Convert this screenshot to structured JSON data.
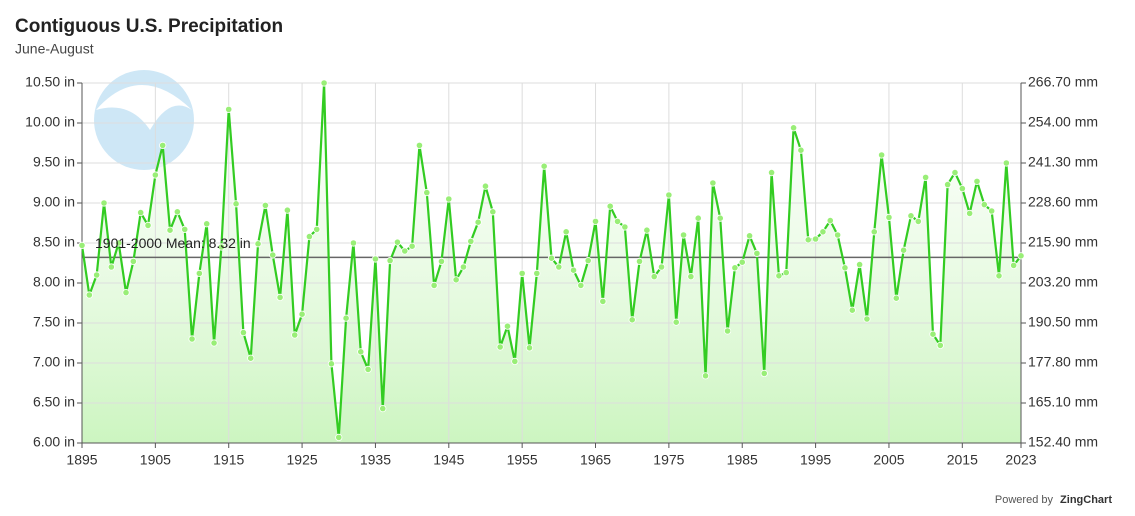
{
  "chart_data": {
    "type": "line",
    "title": "Contiguous U.S. Precipitation",
    "subtitle": "June-August",
    "logo_text": "NOAA",
    "credit": {
      "prefix": "Powered by",
      "brand": "ZingChart"
    },
    "mean_line": {
      "label": "1901-2000 Mean: 8.32 in",
      "value": 8.32,
      "color": "#666666"
    },
    "grid": true,
    "xlim": [
      1895,
      2023
    ],
    "xticks": [
      1895,
      1905,
      1915,
      1925,
      1935,
      1945,
      1955,
      1965,
      1975,
      1985,
      1995,
      2005,
      2015,
      2023
    ],
    "ylim": [
      6.0,
      10.5
    ],
    "yticks": [
      {
        "value": 6.0,
        "label": "6.00 in"
      },
      {
        "value": 6.5,
        "label": "6.50 in"
      },
      {
        "value": 7.0,
        "label": "7.00 in"
      },
      {
        "value": 7.5,
        "label": "7.50 in"
      },
      {
        "value": 8.0,
        "label": "8.00 in"
      },
      {
        "value": 8.5,
        "label": "8.50 in"
      },
      {
        "value": 9.0,
        "label": "9.00 in"
      },
      {
        "value": 9.5,
        "label": "9.50 in"
      },
      {
        "value": 10.0,
        "label": "10.00 in"
      },
      {
        "value": 10.5,
        "label": "10.50 in"
      }
    ],
    "y2lim": [
      152.4,
      266.7
    ],
    "y2ticks": [
      {
        "value": 152.4,
        "label": "152.40 mm"
      },
      {
        "value": 165.1,
        "label": "165.10 mm"
      },
      {
        "value": 177.8,
        "label": "177.80 mm"
      },
      {
        "value": 190.5,
        "label": "190.50 mm"
      },
      {
        "value": 203.2,
        "label": "203.20 mm"
      },
      {
        "value": 215.9,
        "label": "215.90 mm"
      },
      {
        "value": 228.6,
        "label": "228.60 mm"
      },
      {
        "value": 241.3,
        "label": "241.30 mm"
      },
      {
        "value": 254.0,
        "label": "254.00 mm"
      },
      {
        "value": 266.7,
        "label": "266.70 mm"
      }
    ],
    "x": [
      1895,
      1896,
      1897,
      1898,
      1899,
      1900,
      1901,
      1902,
      1903,
      1904,
      1905,
      1906,
      1907,
      1908,
      1909,
      1910,
      1911,
      1912,
      1913,
      1914,
      1915,
      1916,
      1917,
      1918,
      1919,
      1920,
      1921,
      1922,
      1923,
      1924,
      1925,
      1926,
      1927,
      1928,
      1929,
      1930,
      1931,
      1932,
      1933,
      1934,
      1935,
      1936,
      1937,
      1938,
      1939,
      1940,
      1941,
      1942,
      1943,
      1944,
      1945,
      1946,
      1947,
      1948,
      1949,
      1950,
      1951,
      1952,
      1953,
      1954,
      1955,
      1956,
      1957,
      1958,
      1959,
      1960,
      1961,
      1962,
      1963,
      1964,
      1965,
      1966,
      1967,
      1968,
      1969,
      1970,
      1971,
      1972,
      1973,
      1974,
      1975,
      1976,
      1977,
      1978,
      1979,
      1980,
      1981,
      1982,
      1983,
      1984,
      1985,
      1986,
      1987,
      1988,
      1989,
      1990,
      1991,
      1992,
      1993,
      1994,
      1995,
      1996,
      1997,
      1998,
      1999,
      2000,
      2001,
      2002,
      2003,
      2004,
      2005,
      2006,
      2007,
      2008,
      2009,
      2010,
      2011,
      2012,
      2013,
      2014,
      2015,
      2016,
      2017,
      2018,
      2019,
      2020,
      2021,
      2022,
      2023
    ],
    "series": [
      {
        "name": "Precipitation",
        "color": "#33cc22",
        "marker_color": "#99ee77",
        "fill_color": "#ccf5c0",
        "values": [
          8.47,
          7.85,
          8.1,
          9.0,
          8.2,
          8.5,
          7.88,
          8.27,
          8.88,
          8.72,
          9.35,
          9.72,
          8.66,
          8.89,
          8.67,
          7.3,
          8.12,
          8.74,
          7.25,
          8.45,
          10.17,
          8.99,
          7.38,
          7.06,
          8.49,
          8.97,
          8.35,
          7.82,
          8.91,
          7.35,
          7.61,
          8.58,
          8.67,
          10.5,
          6.99,
          6.07,
          7.56,
          8.5,
          7.14,
          6.92,
          8.3,
          6.43,
          8.28,
          8.51,
          8.4,
          8.46,
          9.72,
          9.13,
          7.97,
          8.27,
          9.05,
          8.04,
          8.2,
          8.52,
          8.76,
          9.21,
          8.89,
          7.2,
          7.46,
          7.02,
          8.12,
          7.19,
          8.12,
          9.46,
          8.31,
          8.2,
          8.64,
          8.16,
          7.97,
          8.28,
          8.77,
          7.77,
          8.96,
          8.77,
          8.7,
          7.54,
          8.27,
          8.66,
          8.08,
          8.2,
          9.1,
          7.51,
          8.6,
          8.08,
          8.81,
          6.84,
          9.25,
          8.81,
          7.4,
          8.19,
          8.26,
          8.59,
          8.37,
          6.87,
          9.38,
          8.09,
          8.13,
          9.94,
          9.66,
          8.54,
          8.55,
          8.64,
          8.78,
          8.6,
          8.19,
          7.66,
          8.23,
          7.55,
          8.64,
          9.6,
          8.82,
          7.81,
          8.41,
          8.84,
          8.77,
          9.32,
          7.36,
          7.22,
          9.23,
          9.38,
          9.18,
          8.87,
          9.27,
          8.98,
          8.9,
          8.09,
          9.5,
          8.22,
          8.34
        ]
      }
    ]
  }
}
